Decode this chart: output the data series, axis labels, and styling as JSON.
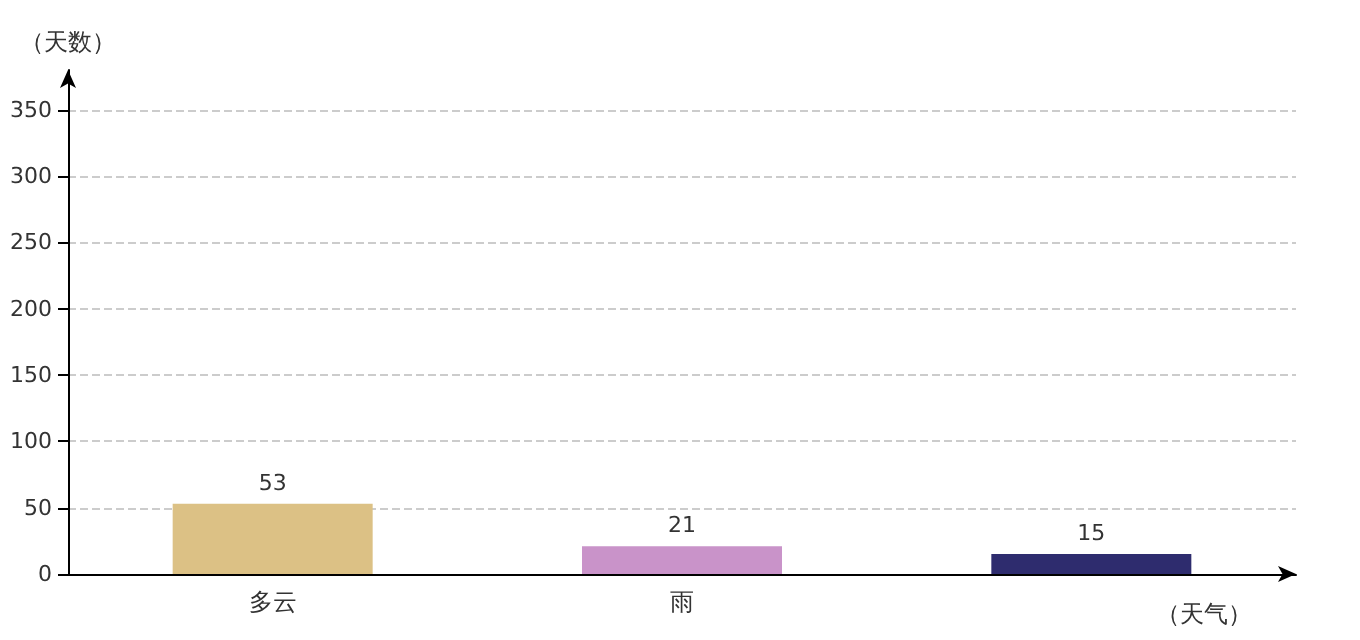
{
  "chart_data": {
    "type": "bar",
    "xlabel": "（天气）",
    "ylabel": "（天数）",
    "categories": [
      "多云",
      "雨",
      null
    ],
    "values": [
      53,
      21,
      15
    ],
    "colors": [
      "#dcc185",
      "#c993c9",
      "#2e2c6e"
    ],
    "ylim": [
      0,
      380
    ],
    "yticks": [
      0,
      50,
      100,
      150,
      200,
      250,
      300,
      350
    ],
    "grid": "y",
    "data_labels": true
  }
}
